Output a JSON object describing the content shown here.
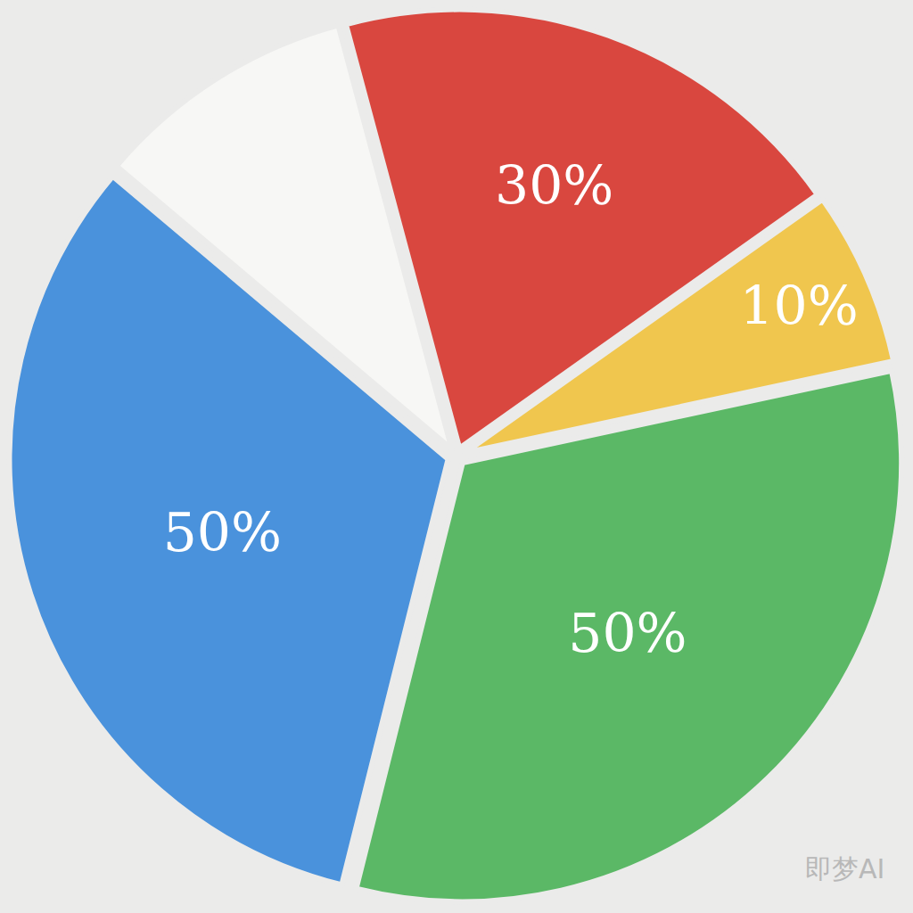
{
  "chart_data": {
    "type": "pie",
    "values": [
      30,
      10,
      50,
      50,
      15
    ],
    "value_labels": [
      "30%",
      "10%",
      "50%",
      "50%",
      null
    ],
    "colors": [
      "#d9473f",
      "#f0c64e",
      "#5bb866",
      "#4a92dc",
      "#f7f7f5"
    ],
    "data_labels": true,
    "annotations": [
      "即梦AI"
    ]
  }
}
